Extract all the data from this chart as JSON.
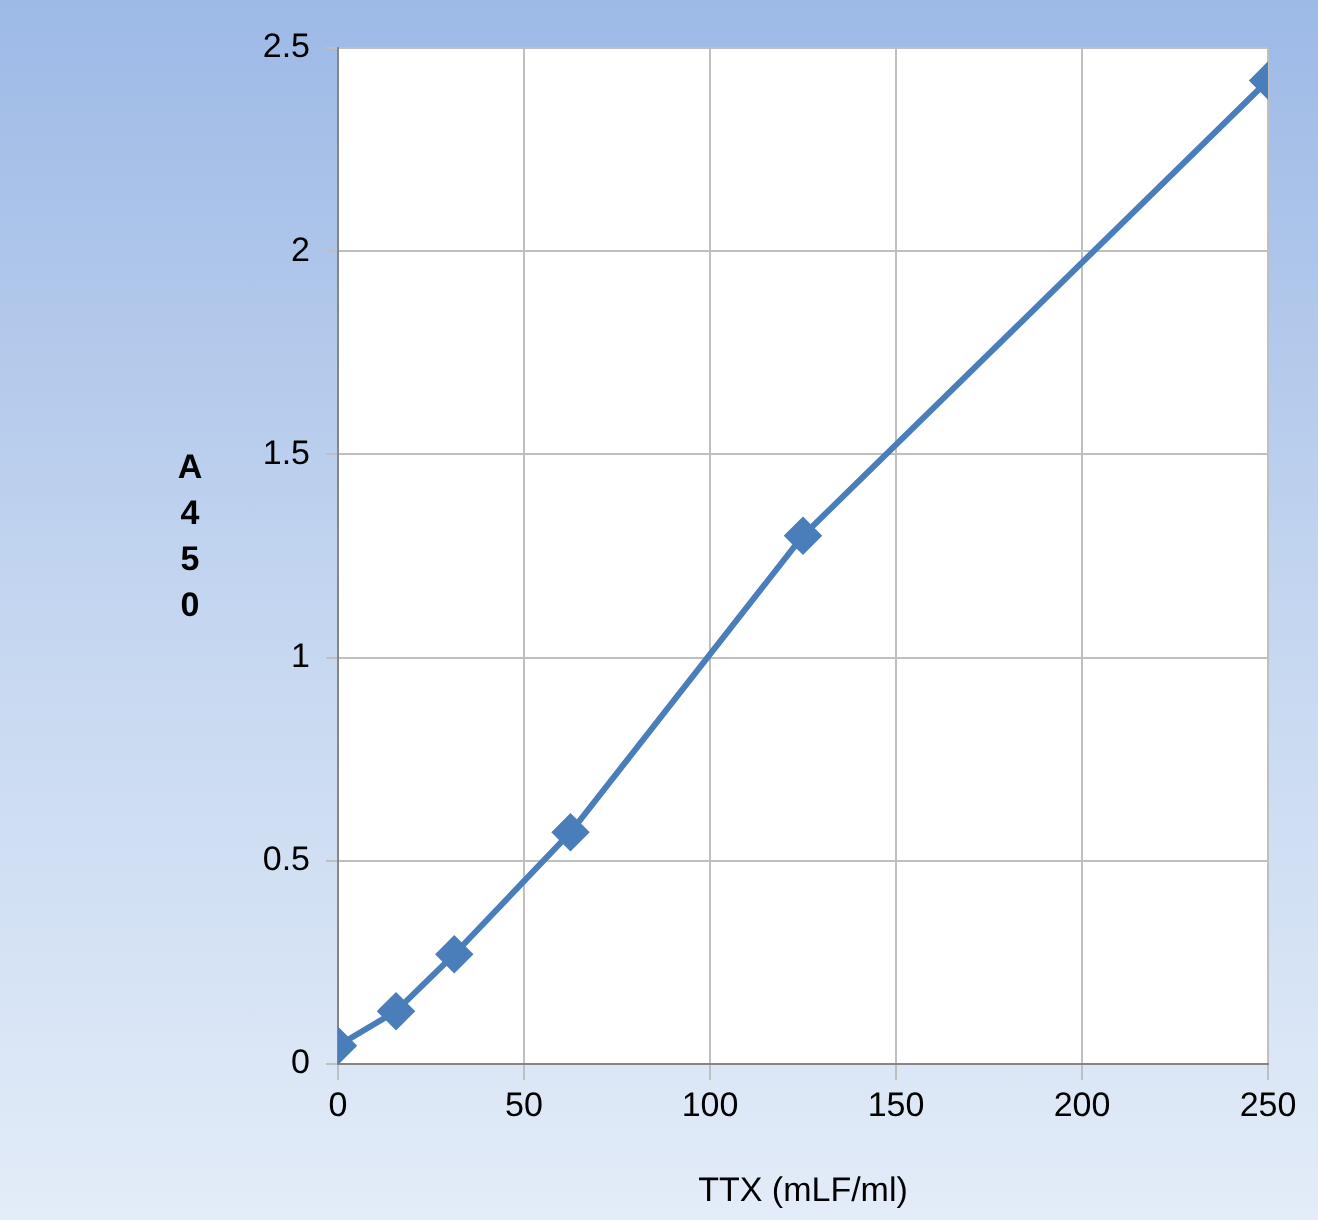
{
  "chart_data": {
    "type": "line",
    "xlabel": "TTX (mLF/ml)",
    "ylabel": "A450",
    "x": [
      0,
      15.6,
      31.25,
      62.5,
      125,
      250
    ],
    "series": [
      {
        "color": "#4a7ebb",
        "values": [
          0.045,
          0.13,
          0.27,
          0.57,
          1.3,
          2.42
        ]
      }
    ],
    "xlim": [
      0,
      250
    ],
    "xticks": [
      0,
      50,
      100,
      150,
      200,
      250
    ],
    "ylim": [
      0,
      2.5
    ],
    "yticks": [
      0,
      0.5,
      1,
      1.5,
      2,
      2.5
    ],
    "grid": true,
    "legend": false,
    "marker": "diamond",
    "line_style": "solid"
  }
}
